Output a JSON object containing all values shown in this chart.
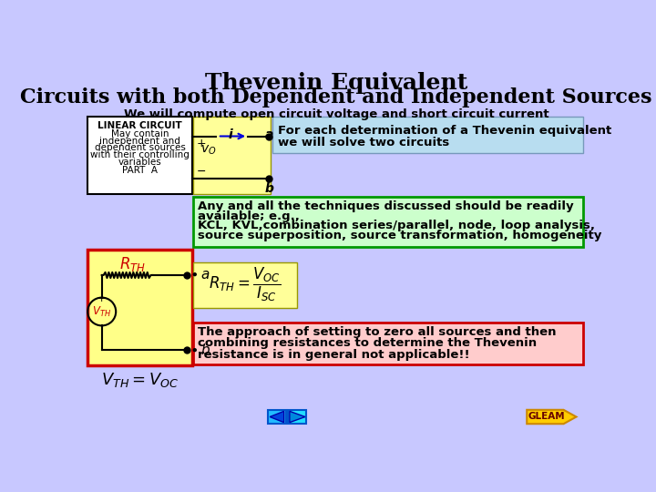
{
  "title_line1": "Thevenin Equivalent",
  "title_line2": "Circuits with both Dependent and Independent Sources",
  "bg_color": "#c8c8ff",
  "subtitle_text": "We will compute open circuit voltage and short circuit current",
  "blue_box_color": "#b8ddf0",
  "blue_box_edge": "#7799bb",
  "green_box_color": "#ccffcc",
  "green_box_edge": "#009900",
  "red_box_color": "#ffcccc",
  "red_box_edge": "#cc0000",
  "yellow_color": "#ffff99",
  "yellow_bottom_color": "#ffff88",
  "white_box_color": "#ffffff",
  "left_box_lines": [
    "LINEAR CIRCUIT",
    "May contain",
    "independent and",
    "dependent sources",
    "with their controlling",
    "variables",
    "PART  A"
  ],
  "green_box_lines": [
    "Any and all the techniques discussed should be readily",
    "available; e.g.,",
    "KCL, KVL,combination series/parallel, node, loop analysis,",
    "source superposition, source transformation, homogeneity"
  ],
  "red_box_lines": [
    "The approach of setting to zero all sources and then",
    "combining resistances to determine the Thevenin",
    "resistance is in general not applicable!!"
  ],
  "gleam_text": "GLEAM"
}
